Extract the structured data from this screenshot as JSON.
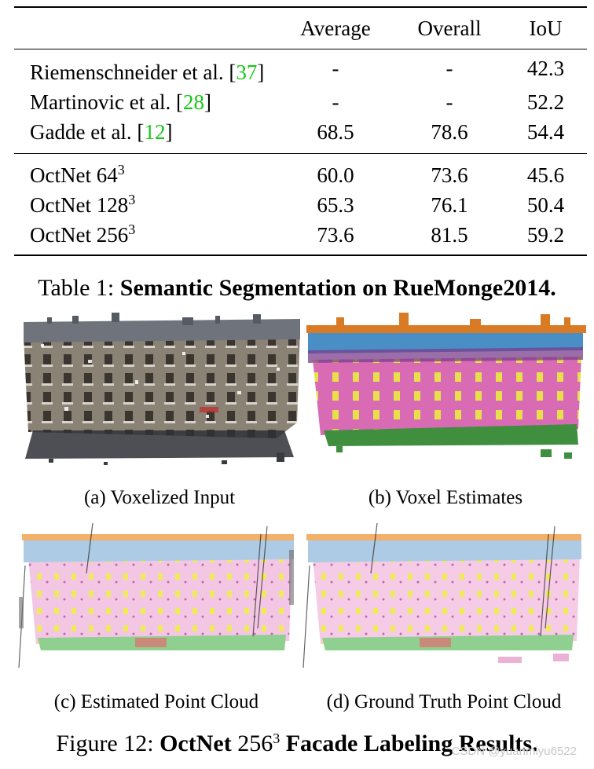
{
  "table": {
    "headers": [
      "",
      "Average",
      "Overall",
      "IoU"
    ],
    "groups": [
      [
        {
          "method": "Riemenschneider et al. [",
          "cite": "37",
          "tail": "]",
          "average": "-",
          "overall": "-",
          "iou": "42.3"
        },
        {
          "method": "Martinovic et al. [",
          "cite": "28",
          "tail": "]",
          "average": "-",
          "overall": "-",
          "iou": "52.2"
        },
        {
          "method": "Gadde et al. [",
          "cite": "12",
          "tail": "]",
          "average": "68.5",
          "overall": "78.6",
          "iou": "54.4"
        }
      ],
      [
        {
          "method": "OctNet 64",
          "sup": "3",
          "average": "60.0",
          "overall": "73.6",
          "iou": "45.6"
        },
        {
          "method": "OctNet 128",
          "sup": "3",
          "average": "65.3",
          "overall": "76.1",
          "iou": "50.4"
        },
        {
          "method": "OctNet 256",
          "sup": "3",
          "average": "73.6",
          "overall": "81.5",
          "iou": "59.2"
        }
      ]
    ]
  },
  "table_caption": {
    "prefix": "Table 1: ",
    "bold": "Semantic Segmentation on RueMonge2014."
  },
  "panels": {
    "a": "(a) Voxelized Input",
    "b": "(b) Voxel Estimates",
    "c": "(c) Estimated Point Cloud",
    "d": "(d) Ground Truth Point Cloud"
  },
  "figure_caption": {
    "prefix": "Figure 12: ",
    "bold1": "OctNet",
    "size": "256",
    "sup": "3",
    "bold2": " Facade Labeling Results."
  },
  "watermark": "CSDN @yuanmiyu6522",
  "colors": {
    "citation": "#16c716",
    "wall": "#d86bb4",
    "window": "#e8e04a",
    "roof": "#d97a24",
    "sky_band": "#4a8ec6",
    "shop": "#3f8f3f",
    "balcony": "#7a3d8c"
  }
}
